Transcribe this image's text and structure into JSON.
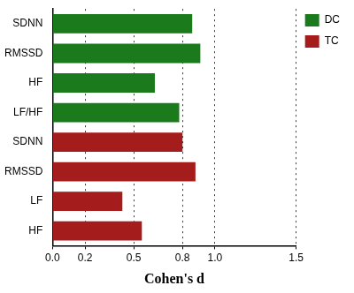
{
  "chart_data": {
    "type": "bar",
    "orientation": "horizontal",
    "x_label": "Cohen's d",
    "categories": [
      "SDNN",
      "RMSSD",
      "HF",
      "LF/HF",
      "SDNN",
      "RMSSD",
      "LF",
      "HF"
    ],
    "series": [
      {
        "name": "DC",
        "color": "#1b7a1b",
        "values": [
          0.86,
          0.91,
          0.63,
          0.78,
          null,
          null,
          null,
          null
        ]
      },
      {
        "name": "TC",
        "color": "#a51c1c",
        "values": [
          null,
          null,
          null,
          null,
          0.8,
          0.88,
          0.43,
          0.55
        ]
      }
    ],
    "xlim": [
      0,
      1.5
    ],
    "xticks": [
      {
        "value": 0,
        "label": "0.0"
      },
      {
        "value": 0.2,
        "label": "0.2"
      },
      {
        "value": 0.5,
        "label": "0.5"
      },
      {
        "value": 0.8,
        "label": "0.8"
      },
      {
        "value": 1.0,
        "label": "1.0"
      },
      {
        "value": 1.5,
        "label": "1.5"
      }
    ],
    "grid": true,
    "legend": "upper right"
  }
}
